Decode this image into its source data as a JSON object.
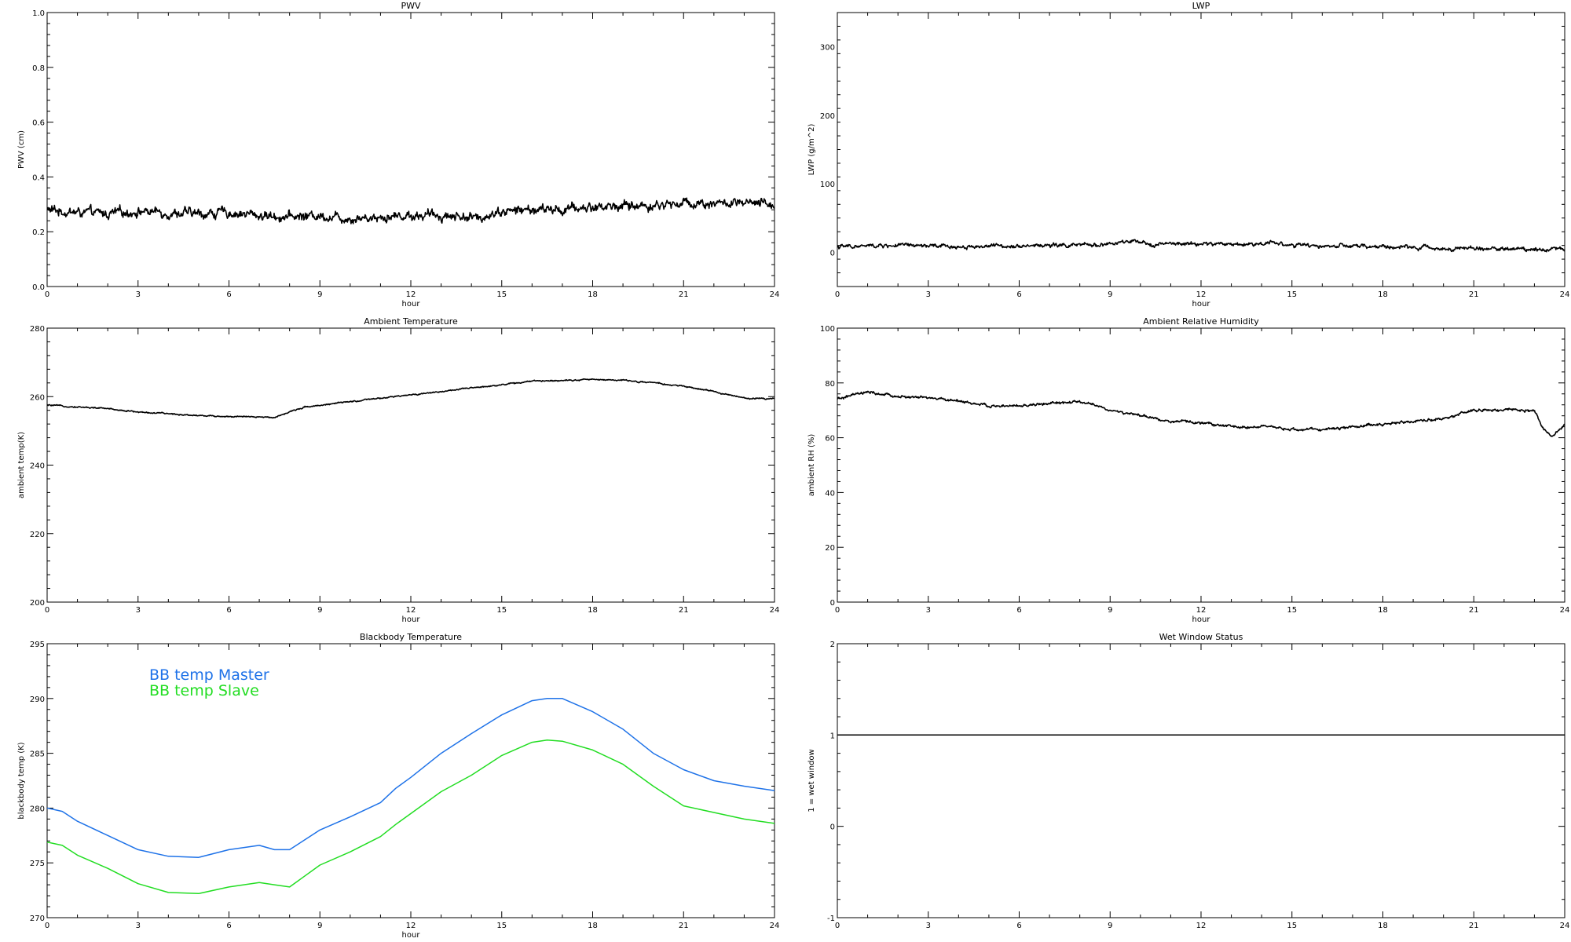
{
  "figure": {
    "background": "#ffffff",
    "line_color": "#000000"
  },
  "chart_data": [
    {
      "id": "pwv",
      "type": "line",
      "title": "PWV",
      "xlabel": "hour",
      "ylabel": "PWV (cm)",
      "xlim": [
        0,
        24
      ],
      "ylim": [
        0.0,
        1.0
      ],
      "xticks": [
        0,
        3,
        6,
        9,
        12,
        15,
        18,
        21,
        24
      ],
      "xtick_labels": [
        "0",
        "3",
        "6",
        "9",
        "12",
        "15",
        "18",
        "21",
        "24"
      ],
      "yticks": [
        0.0,
        0.2,
        0.4,
        0.6,
        0.8,
        1.0
      ],
      "ytick_labels": [
        "0.0",
        "0.2",
        "0.4",
        "0.6",
        "0.8",
        "1.0"
      ],
      "grid": false,
      "noise": 0.018,
      "series": [
        {
          "color": "#000000",
          "x": [
            0,
            1,
            2,
            3,
            4,
            5,
            6,
            7,
            8,
            9,
            10,
            11,
            12,
            13,
            14,
            14.3,
            14.5,
            15,
            16,
            17,
            18,
            19,
            20,
            21,
            22,
            23,
            24
          ],
          "y": [
            0.28,
            0.27,
            0.265,
            0.275,
            0.27,
            0.265,
            0.27,
            0.26,
            0.255,
            0.26,
            0.25,
            0.255,
            0.26,
            0.26,
            0.255,
            0.24,
            0.265,
            0.275,
            0.28,
            0.28,
            0.29,
            0.295,
            0.295,
            0.305,
            0.305,
            0.3,
            0.3
          ]
        }
      ]
    },
    {
      "id": "lwp",
      "type": "line",
      "title": "LWP",
      "xlabel": "hour",
      "ylabel": "LWP (g/m^2)",
      "xlim": [
        0,
        24
      ],
      "ylim": [
        -50,
        350
      ],
      "xticks": [
        0,
        3,
        6,
        9,
        12,
        15,
        18,
        21,
        24
      ],
      "xtick_labels": [
        "0",
        "3",
        "6",
        "9",
        "12",
        "15",
        "18",
        "21",
        "24"
      ],
      "yticks": [
        0,
        100,
        200,
        300
      ],
      "ytick_labels": [
        "0",
        "100",
        "200",
        "300"
      ],
      "grid": false,
      "noise": 3,
      "series": [
        {
          "color": "#000000",
          "x": [
            0,
            2,
            4,
            6,
            8,
            9,
            9.8,
            10,
            12,
            14,
            14.2,
            15,
            16,
            18,
            20,
            22,
            24
          ],
          "y": [
            8,
            10,
            8,
            10,
            10,
            12,
            16,
            12,
            12,
            12,
            16,
            10,
            9,
            8,
            6,
            5,
            5
          ]
        }
      ]
    },
    {
      "id": "ambient-temp",
      "type": "line",
      "title": "Ambient Temperature",
      "xlabel": "hour",
      "ylabel": "ambient temp(K)",
      "xlim": [
        0,
        24
      ],
      "ylim": [
        200,
        280
      ],
      "xticks": [
        0,
        3,
        6,
        9,
        12,
        15,
        18,
        21,
        24
      ],
      "xtick_labels": [
        "0",
        "3",
        "6",
        "9",
        "12",
        "15",
        "18",
        "21",
        "24"
      ],
      "yticks": [
        200,
        220,
        240,
        260,
        280
      ],
      "ytick_labels": [
        "200",
        "220",
        "240",
        "260",
        "280"
      ],
      "grid": false,
      "noise": 0.2,
      "series": [
        {
          "color": "#000000",
          "x": [
            0,
            1,
            2,
            3,
            4,
            5,
            6,
            7,
            7.5,
            8,
            8.5,
            9,
            10,
            11,
            12,
            13,
            14,
            15,
            16,
            17,
            18,
            19,
            20,
            21,
            22,
            23,
            24
          ],
          "y": [
            257.5,
            257,
            256.5,
            255.5,
            255,
            254.5,
            254.2,
            254,
            254,
            255.5,
            257,
            257.5,
            258.5,
            259.5,
            260.5,
            261.5,
            262.5,
            263.5,
            264.5,
            264.8,
            265,
            264.8,
            264,
            263,
            261.5,
            259.5,
            259.5
          ]
        }
      ]
    },
    {
      "id": "ambient-rh",
      "type": "line",
      "title": "Ambient Relative Humidity",
      "xlabel": "hour",
      "ylabel": "ambient RH (%)",
      "xlim": [
        0,
        24
      ],
      "ylim": [
        0,
        100
      ],
      "xticks": [
        0,
        3,
        6,
        9,
        12,
        15,
        18,
        21,
        24
      ],
      "xtick_labels": [
        "0",
        "3",
        "6",
        "9",
        "12",
        "15",
        "18",
        "21",
        "24"
      ],
      "yticks": [
        0,
        20,
        40,
        60,
        80,
        100
      ],
      "ytick_labels": [
        "0",
        "20",
        "40",
        "60",
        "80",
        "100"
      ],
      "grid": false,
      "noise": 0.5,
      "series": [
        {
          "color": "#000000",
          "x": [
            0,
            0.5,
            1,
            2,
            3,
            4,
            5,
            6,
            7,
            8,
            8.5,
            9,
            10,
            11,
            12,
            13,
            14,
            15,
            16,
            17,
            18,
            19,
            20,
            21,
            22,
            23,
            23.3,
            23.6,
            24
          ],
          "y": [
            74,
            75.5,
            76.5,
            75,
            74.5,
            73.5,
            71.5,
            71.5,
            72.5,
            73,
            72,
            70,
            68,
            66,
            65.5,
            64,
            64,
            63,
            63,
            64,
            65,
            66,
            67,
            70,
            70,
            70,
            63,
            60,
            65
          ]
        }
      ]
    },
    {
      "id": "bb-temp",
      "type": "line",
      "title": "Blackbody Temperature",
      "xlabel": "hour",
      "ylabel": "blackbody temp (K)",
      "xlim": [
        0,
        24
      ],
      "ylim": [
        270,
        295
      ],
      "xticks": [
        0,
        3,
        6,
        9,
        12,
        15,
        18,
        21,
        24
      ],
      "xtick_labels": [
        "0",
        "3",
        "6",
        "9",
        "12",
        "15",
        "18",
        "21",
        "24"
      ],
      "yticks": [
        270,
        275,
        280,
        285,
        290,
        295
      ],
      "ytick_labels": [
        "270",
        "275",
        "280",
        "285",
        "290",
        "295"
      ],
      "grid": false,
      "legend": "top-left",
      "noise": 0,
      "series": [
        {
          "name": "BB temp Master",
          "color": "#1e72e8",
          "x": [
            0,
            0.5,
            1,
            2,
            3,
            4,
            5,
            6,
            7,
            7.5,
            8,
            9,
            10,
            11,
            11.5,
            12,
            13,
            14,
            15,
            16,
            16.5,
            17,
            18,
            19,
            20,
            21,
            22,
            23,
            24
          ],
          "y": [
            280.0,
            279.7,
            278.8,
            277.5,
            276.2,
            275.6,
            275.5,
            276.2,
            276.6,
            276.2,
            276.2,
            278.0,
            279.2,
            280.5,
            281.8,
            282.8,
            285.0,
            286.8,
            288.5,
            289.8,
            290.0,
            290.0,
            288.8,
            287.2,
            285.0,
            283.5,
            282.5,
            282.0,
            281.6
          ]
        },
        {
          "name": "BB temp Slave",
          "color": "#22dd22",
          "x": [
            0,
            0.5,
            1,
            2,
            3,
            4,
            5,
            6,
            7,
            7.5,
            8,
            9,
            10,
            11,
            11.5,
            12,
            13,
            14,
            15,
            16,
            16.5,
            17,
            18,
            19,
            20,
            21,
            22,
            23,
            24
          ],
          "y": [
            276.9,
            276.6,
            275.7,
            274.5,
            273.1,
            272.3,
            272.2,
            272.8,
            273.2,
            273.0,
            272.8,
            274.8,
            276.0,
            277.4,
            278.5,
            279.5,
            281.5,
            283.0,
            284.8,
            286.0,
            286.2,
            286.1,
            285.3,
            284.0,
            282.0,
            280.2,
            279.6,
            279.0,
            278.6
          ]
        }
      ]
    },
    {
      "id": "wet-window",
      "type": "line",
      "title": "Wet Window Status",
      "xlabel": "",
      "ylabel": "1 = wet window",
      "xlim": [
        0,
        24
      ],
      "ylim": [
        -1,
        2
      ],
      "xticks": [
        0,
        3,
        6,
        9,
        12,
        15,
        18,
        21,
        24
      ],
      "xtick_labels": [
        "0",
        "3",
        "6",
        "9",
        "12",
        "15",
        "18",
        "21",
        "24"
      ],
      "yticks": [
        -1,
        0,
        1,
        2
      ],
      "ytick_labels": [
        "-1",
        "0",
        "1",
        "2"
      ],
      "grid": false,
      "noise": 0,
      "series": [
        {
          "color": "#000000",
          "x": [
            0,
            24
          ],
          "y": [
            1,
            1
          ]
        }
      ]
    }
  ]
}
